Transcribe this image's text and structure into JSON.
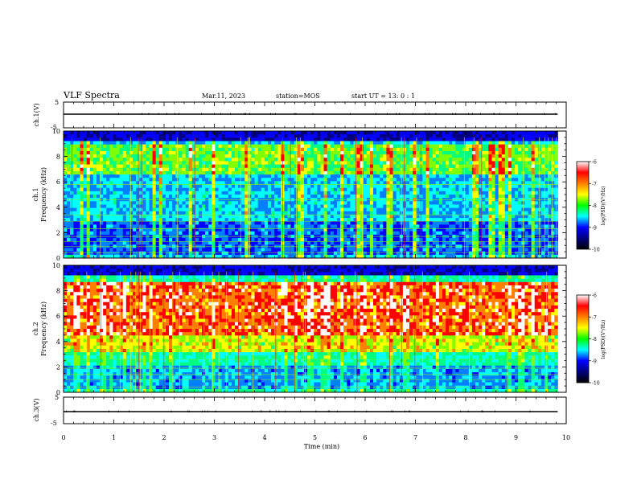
{
  "header": {
    "title": "VLF Spectra",
    "date": "Mar.11, 2023",
    "station": "station=MOS",
    "start_ut": "start  UT =  13: 0  : 1"
  },
  "chart_data": [
    {
      "type": "line",
      "panel": "ch1-waveform",
      "ylabel": "ch.1(V)",
      "ylim": [
        -5,
        5
      ],
      "yticks": [
        "5",
        "-5"
      ],
      "series": [
        {
          "values": [
            -0.8,
            -0.8
          ]
        }
      ]
    },
    {
      "type": "heatmap",
      "panel": "ch1-spectrogram",
      "ylabel": "ch.1\nFrequency (kHz)",
      "ylim": [
        0,
        10
      ],
      "yticks": [
        "0",
        "2",
        "4",
        "6",
        "8",
        "10"
      ],
      "xlim": [
        0,
        10
      ],
      "colorbar": {
        "label": "log(PSD)(V²/Hz)",
        "range": [
          -10,
          -6
        ],
        "ticks": [
          "-6",
          "-7",
          "-8",
          "-9",
          "-10"
        ]
      }
    },
    {
      "type": "heatmap",
      "panel": "ch2-spectrogram",
      "ylabel": "ch.2\nFrequency (kHz)",
      "ylim": [
        0,
        10
      ],
      "yticks": [
        "0",
        "2",
        "4",
        "6",
        "8",
        "10"
      ],
      "xlim": [
        0,
        10
      ],
      "colorbar": {
        "label": "log(PSD)(V²/Hz)",
        "range": [
          -10,
          -6
        ],
        "ticks": [
          "-6",
          "-7",
          "-8",
          "-9",
          "-10"
        ]
      }
    },
    {
      "type": "line",
      "panel": "ch3-waveform",
      "ylabel": "ch.3(V)",
      "ylim": [
        -5,
        5
      ],
      "yticks": [
        "5",
        "-5"
      ],
      "series": [
        {
          "values": [
            -0.8,
            -0.8
          ]
        }
      ]
    }
  ],
  "xaxis": {
    "label": "Time (min)",
    "ticks": [
      "0",
      "1",
      "2",
      "3",
      "4",
      "5",
      "6",
      "7",
      "8",
      "9",
      "10"
    ],
    "xlim": [
      0,
      10
    ],
    "data_end": 9.83
  },
  "colors": {
    "colormap": [
      "#00007f",
      "#0000ff",
      "#0080ff",
      "#00ffff",
      "#00ff80",
      "#80ff00",
      "#ffff00",
      "#ff8000",
      "#ff0000",
      "#ffffff"
    ],
    "trace": "#000000",
    "frame": "#000000"
  }
}
